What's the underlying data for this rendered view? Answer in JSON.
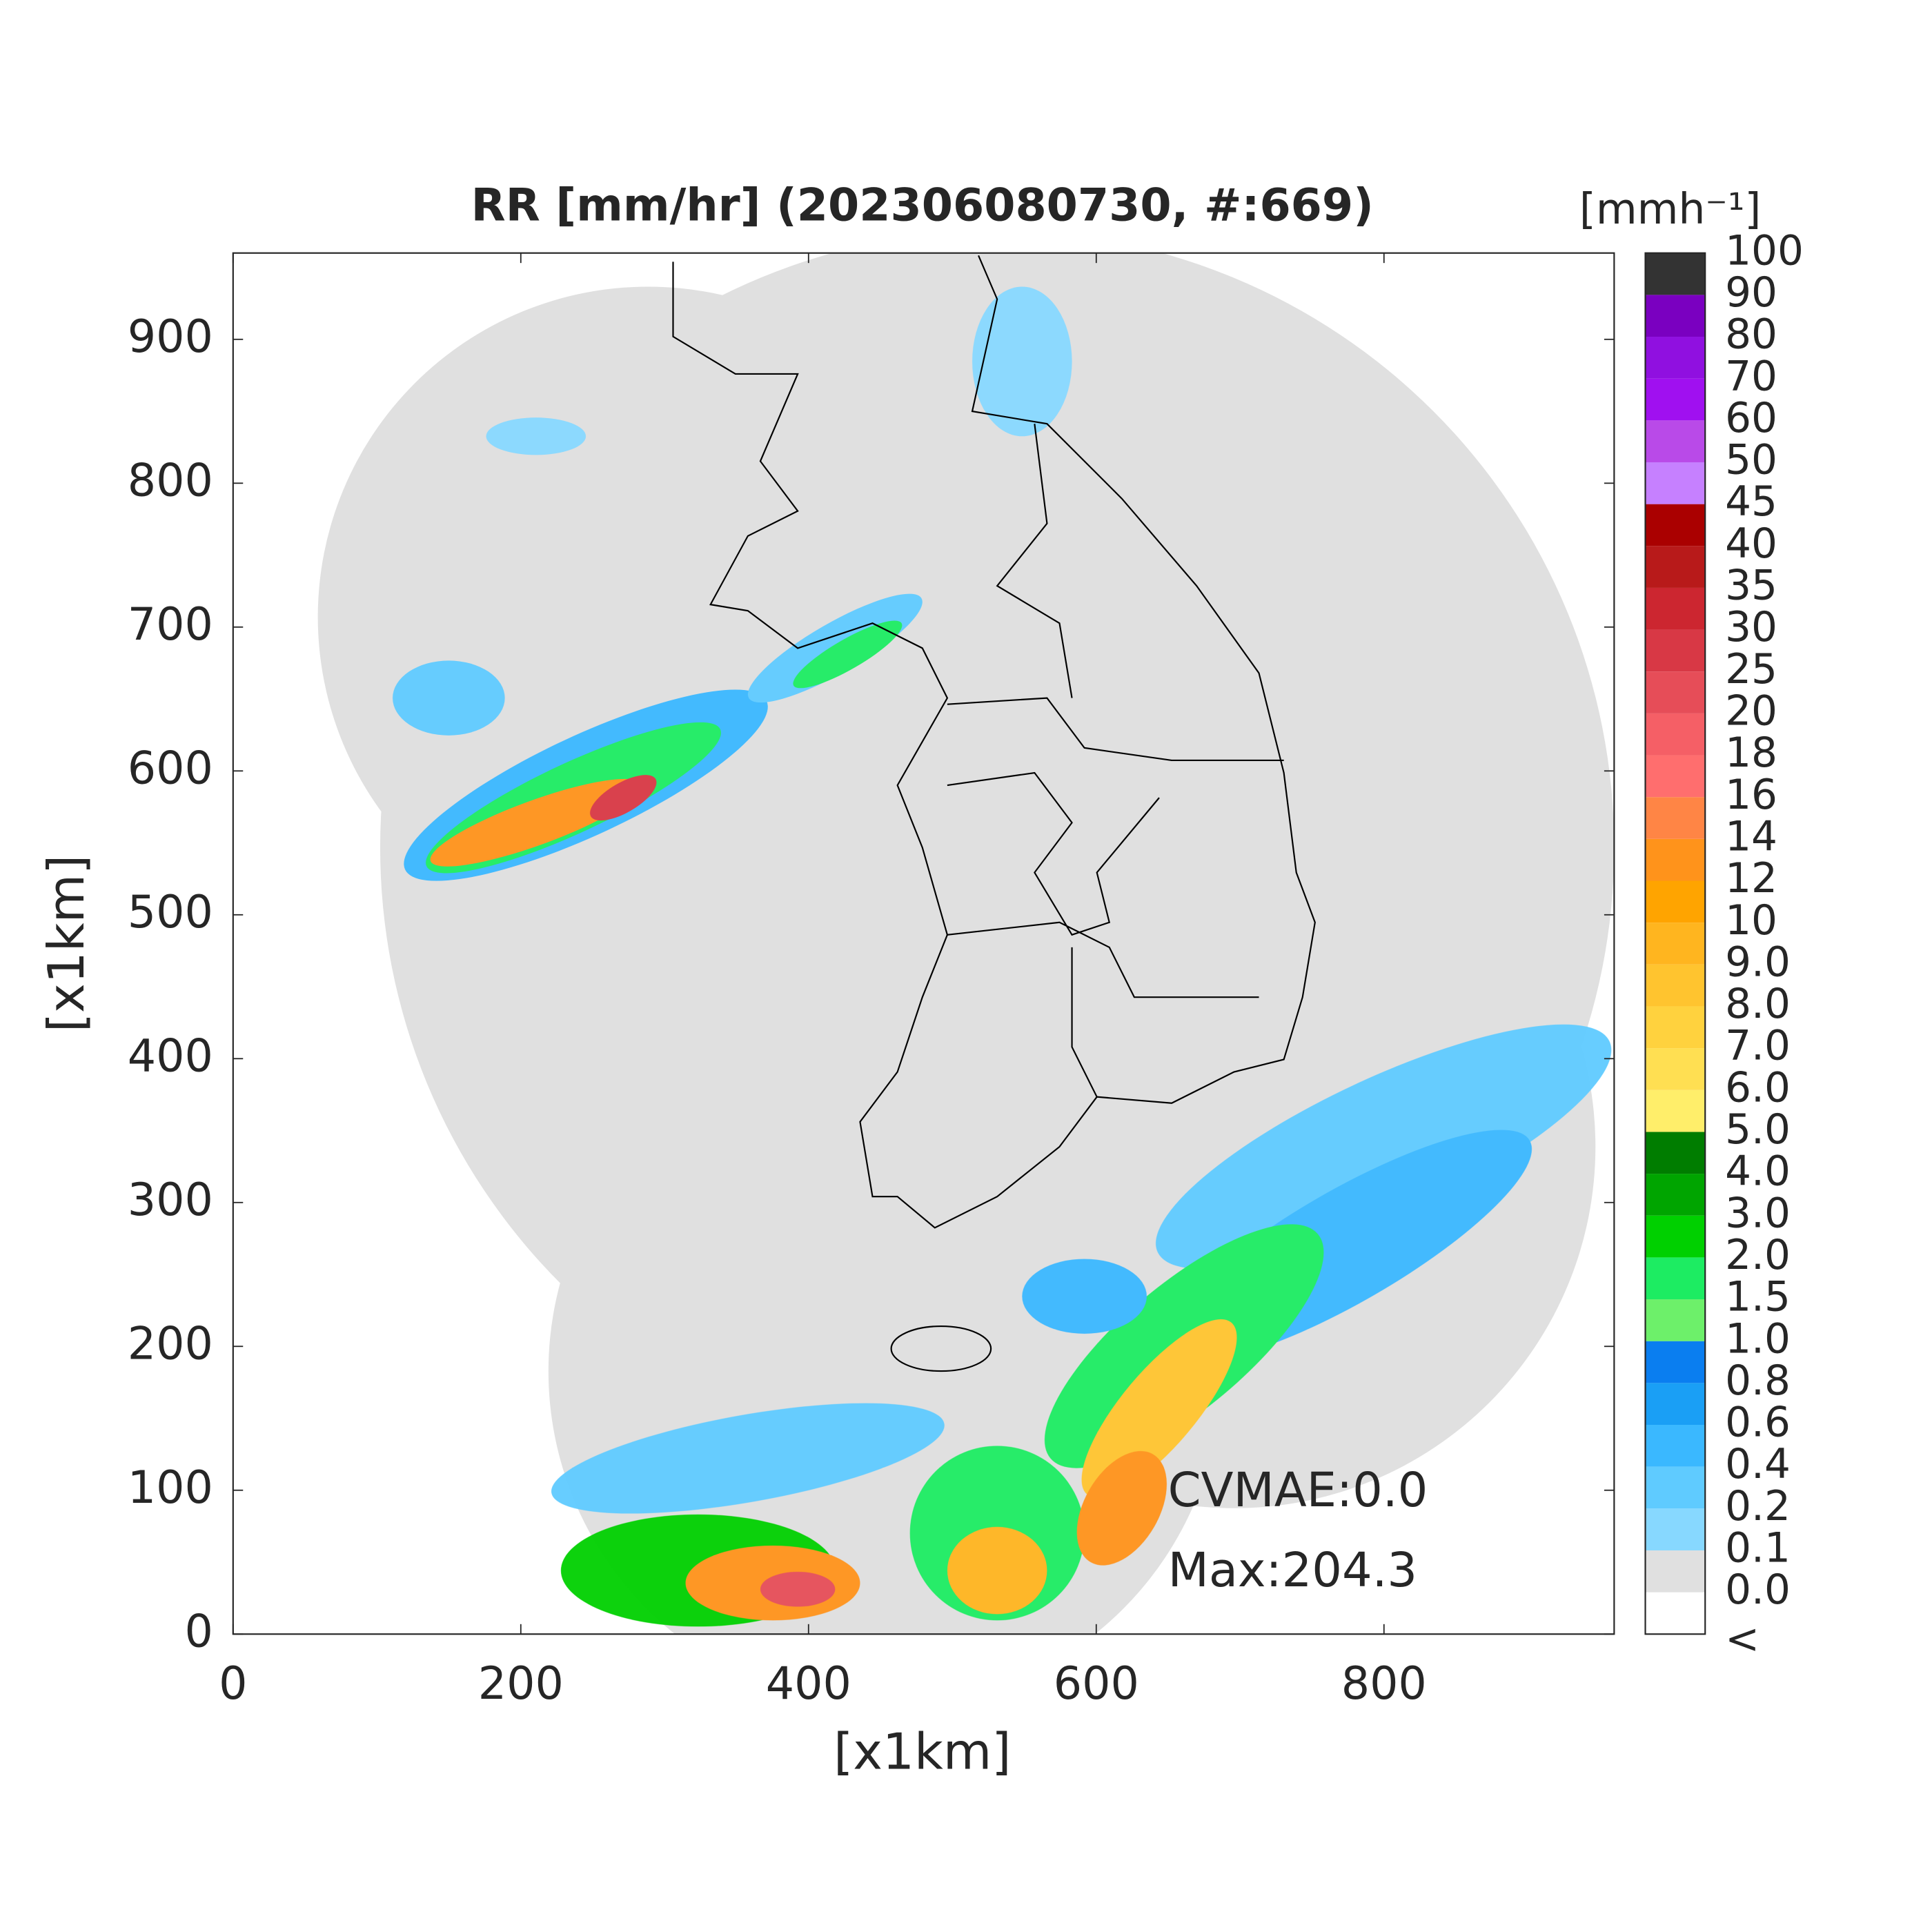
{
  "chart_data": {
    "type": "map",
    "title": "RR [mm/hr] (202306080730, #:669)",
    "xlabel": "[x1km]",
    "ylabel": "[x1km]",
    "xlim": [
      0,
      960
    ],
    "ylim": [
      0,
      960
    ],
    "xticks": [
      0,
      200,
      400,
      600,
      800
    ],
    "yticks": [
      0,
      100,
      200,
      300,
      400,
      500,
      600,
      700,
      800,
      900
    ],
    "annotations": [
      "CVMAE:0.0",
      "Max:204.3"
    ],
    "colorbar": {
      "title": "[mmh⁻¹]",
      "levels": [
        "<",
        "0.0",
        "0.1",
        "0.2",
        "0.4",
        "0.6",
        "0.8",
        "1.0",
        "1.5",
        "2.0",
        "3.0",
        "4.0",
        "5.0",
        "6.0",
        "7.0",
        "8.0",
        "9.0",
        "10",
        "12",
        "14",
        "16",
        "18",
        "20",
        "25",
        "30",
        "35",
        "40",
        "45",
        "50",
        "60",
        "70",
        "80",
        "90",
        "100"
      ],
      "colors": [
        "#ffffff",
        "#e0e0e0",
        "#87d8ff",
        "#5fcbff",
        "#3ab8ff",
        "#1a9ff5",
        "#0a7ef0",
        "#6df06a",
        "#1dec62",
        "#00d000",
        "#00a500",
        "#007d00",
        "#ffee6a",
        "#ffdf52",
        "#ffd23e",
        "#ffc42f",
        "#ffb51f",
        "#ffa400",
        "#ff931b",
        "#ff8545",
        "#ff6e6e",
        "#f55f66",
        "#e64d58",
        "#d83845",
        "#cc2630",
        "#b81a1a",
        "#aa0000",
        "#c680ff",
        "#b94ae8",
        "#a010f0",
        "#9010e0",
        "#7a00c0",
        "#333333"
      ]
    }
  }
}
